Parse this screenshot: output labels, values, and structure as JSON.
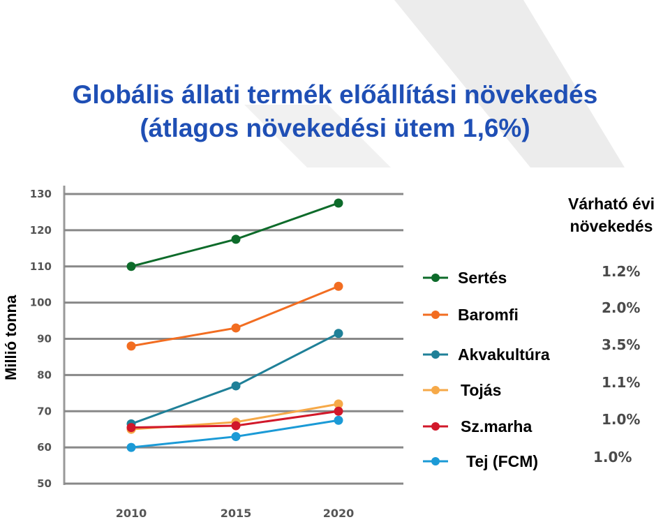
{
  "title_line1": "Globális állati termék előállítási növekedés",
  "title_line2": "(átlagos növekedési ütem 1,6%)",
  "expected_header_line1": "Várható évi",
  "expected_header_line2": "növekedés",
  "chart_data": {
    "type": "line",
    "title": "Globális állati termék előállítási növekedés (átlagos növekedési ütem 1,6%)",
    "xlabel": "",
    "ylabel": "Millió tonna",
    "x": [
      "2010",
      "2015",
      "2020"
    ],
    "ylim": [
      50,
      130
    ],
    "yticks": [
      "50",
      "60",
      "70",
      "80",
      "90",
      "100",
      "110",
      "120",
      "130"
    ],
    "grid": true,
    "legend_position": "right",
    "series": [
      {
        "name": "Sertés",
        "values": [
          110,
          117.5,
          127.5
        ],
        "color": "#0d6b2a",
        "growth": "1.2%"
      },
      {
        "name": "Baromfi",
        "values": [
          88,
          93,
          104.5
        ],
        "color": "#f26d21",
        "growth": "2.0%"
      },
      {
        "name": "Akvakultúra",
        "values": [
          66.5,
          77,
          91.5
        ],
        "color": "#1f8098",
        "growth": "3.5%"
      },
      {
        "name": "Tojás",
        "values": [
          65,
          67,
          72
        ],
        "color": "#f6a948",
        "growth": "1.1%"
      },
      {
        "name": "Sz.marha",
        "values": [
          65.5,
          66,
          70
        ],
        "color": "#d1182a",
        "growth": "1.0%"
      },
      {
        "name": "Tej (FCM)",
        "values": [
          60,
          63,
          67.5
        ],
        "color": "#1b9ad6",
        "growth": "1.0%"
      }
    ]
  }
}
